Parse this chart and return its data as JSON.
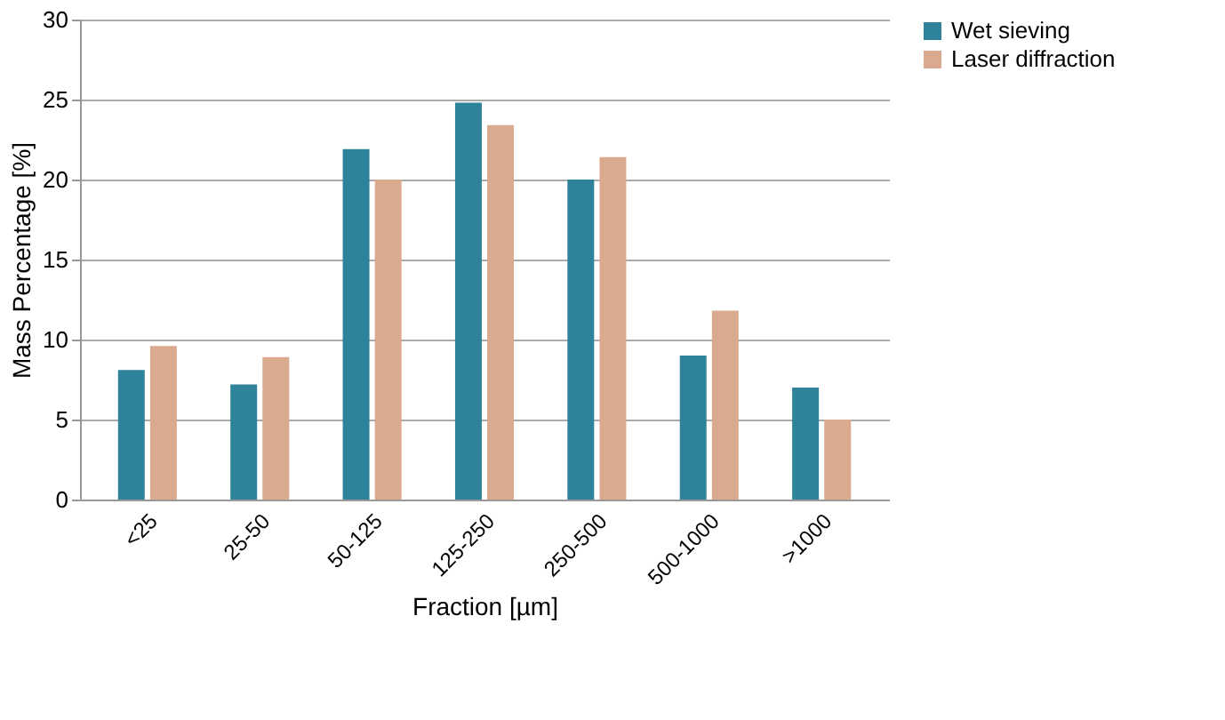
{
  "chart_data": {
    "type": "bar",
    "xlabel": "Fraction [µm]",
    "ylabel": "Mass Percentage [%]",
    "categories": [
      "<25",
      "25-50",
      "50-125",
      "125-250",
      "250-500",
      "500-1000",
      ">1000"
    ],
    "series": [
      {
        "name": "Wet sieving",
        "color": "#2e8299",
        "values": [
          8.1,
          7.2,
          21.9,
          24.8,
          20.0,
          9.0,
          7.0
        ]
      },
      {
        "name": "Laser diffraction",
        "color": "#d9aa8e",
        "values": [
          9.6,
          8.9,
          20.0,
          23.4,
          21.4,
          11.8,
          5.0
        ]
      }
    ],
    "ylim": [
      0,
      30
    ],
    "yticks": [
      0,
      5,
      10,
      15,
      20,
      25,
      30
    ],
    "grid": "y",
    "legend": "right"
  }
}
